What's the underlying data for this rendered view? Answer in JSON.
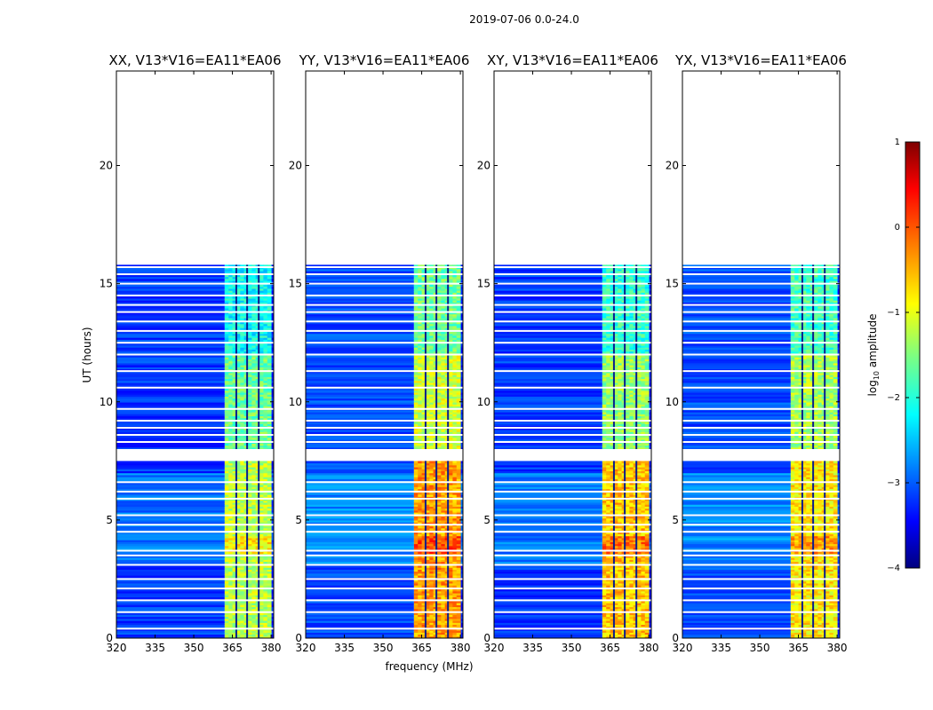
{
  "chart_data": {
    "type": "heatmap",
    "suptitle": "2019-07-06 0.0-24.0",
    "xlabel": "frequency (MHz)",
    "ylabel": "UT (hours)",
    "xlim": [
      320,
      381
    ],
    "ylim": [
      0,
      24
    ],
    "xticks": [
      "320",
      "335",
      "350",
      "365",
      "380"
    ],
    "yticks": [
      "0",
      "5",
      "10",
      "15",
      "20"
    ],
    "colorbar": {
      "label": "log10 amplitude",
      "range": [
        -4,
        1
      ],
      "ticks": [
        "1",
        "0",
        "−1",
        "−2",
        "−3",
        "−4"
      ]
    },
    "data_extent_hours": [
      0,
      15.8
    ],
    "gap_hours": [
      7.5,
      8.0
    ],
    "signal_band_mhz": [
      362,
      380
    ],
    "subplots": [
      {
        "title": "XX, V13*V16=EA11*EA06",
        "band_level_early": -1.2,
        "band_level_late": -1.6,
        "background_level": -3.1
      },
      {
        "title": "YY, V13*V16=EA11*EA06",
        "band_level_early": -0.4,
        "band_level_late": -1.1,
        "background_level": -3.0
      },
      {
        "title": "XY, V13*V16=EA11*EA06",
        "band_level_early": -0.6,
        "band_level_late": -1.4,
        "background_level": -3.1
      },
      {
        "title": "YX, V13*V16=EA11*EA06",
        "band_level_early": -0.8,
        "band_level_late": -1.3,
        "background_level": -3.0
      }
    ]
  }
}
